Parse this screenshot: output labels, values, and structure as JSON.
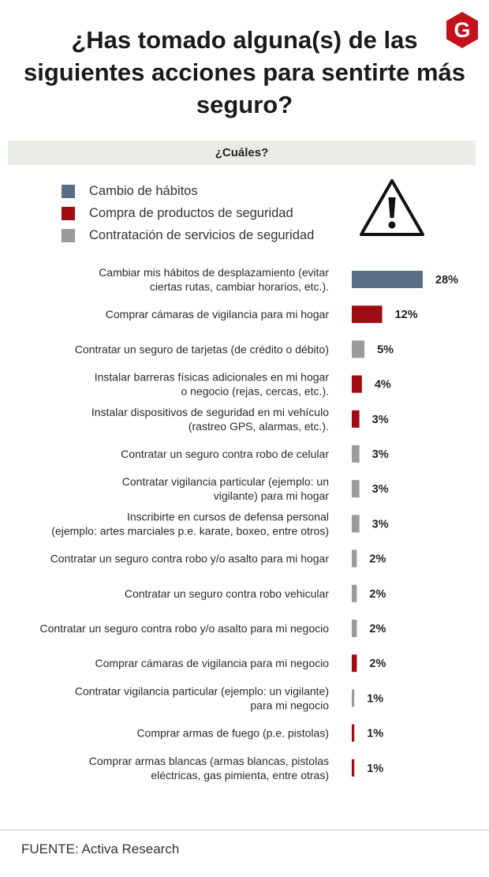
{
  "header": {
    "title": "¿Has tomado alguna(s) de las siguientes  acciones para sentirte más seguro?",
    "logo_letter": "G",
    "subtitle": "¿Cuáles?"
  },
  "legend": [
    {
      "label": "Cambio de hábitos",
      "color": "#5a6f86"
    },
    {
      "label": "Compra de productos de seguridad",
      "color": "#a00c14"
    },
    {
      "label": "Contratación de servicios de seguridad",
      "color": "#9b9b9b"
    }
  ],
  "colors": {
    "accent": "#c3121b",
    "hab": "#5a6f86",
    "prod": "#a00c14",
    "serv": "#9b9b9b"
  },
  "icons": {
    "brand": "g-logo-icon",
    "warning": "warning-icon"
  },
  "chart_data": {
    "type": "bar",
    "orientation": "horizontal",
    "unit": "%",
    "grid": false,
    "legend_position": "top-left",
    "categories": [
      [
        "Cambiar mis hábitos de desplazamiento (evitar",
        "ciertas rutas, cambiar horarios, etc.)."
      ],
      [
        "Comprar cámaras de vigilancia para mi hogar"
      ],
      [
        "Contratar un seguro de tarjetas (de crédito o débito)"
      ],
      [
        "Instalar barreras físicas adicionales en mi hogar",
        "o negocio (rejas, cercas, etc.)."
      ],
      [
        "Instalar dispositivos de seguridad en mi vehículo",
        "(rastreo GPS, alarmas, etc.)."
      ],
      [
        "Contratar un seguro contra robo de celular"
      ],
      [
        "Contratar vigilancia particular (ejemplo: un",
        "vigilante) para mi hogar"
      ],
      [
        "Inscribirte en cursos de defensa personal",
        "(ejemplo: artes marciales p.e. karate, boxeo, entre otros)"
      ],
      [
        "Contratar un seguro contra robo y/o asalto para mi hogar"
      ],
      [
        "Contratar un seguro contra robo vehicular"
      ],
      [
        "Contratar un seguro contra robo y/o asalto para mi negocio"
      ],
      [
        "Comprar cámaras de vigilancia para mi negocio"
      ],
      [
        "Contratar vigilancia particular (ejemplo: un vigilante)",
        "para mi negocio"
      ],
      [
        "Comprar armas de fuego (p.e. pistolas)"
      ],
      [
        "Comprar armas blancas (armas blancas, pistolas",
        "eléctricas, gas pimienta, entre otras)"
      ]
    ],
    "values": [
      28,
      12,
      5,
      4,
      3,
      3,
      3,
      3,
      2,
      2,
      2,
      2,
      1,
      1,
      1
    ],
    "value_labels": [
      "28%",
      "12%",
      "5%",
      "4%",
      "3%",
      "3%",
      "3%",
      "3%",
      "2%",
      "2%",
      "2%",
      "2%",
      "1%",
      "1%",
      "1%"
    ],
    "groups": [
      "hab",
      "prod",
      "serv",
      "prod",
      "prod",
      "serv",
      "serv",
      "serv",
      "serv",
      "serv",
      "serv",
      "prod",
      "serv",
      "prod",
      "prod"
    ]
  },
  "footer": {
    "source": "FUENTE: Activa Research"
  }
}
